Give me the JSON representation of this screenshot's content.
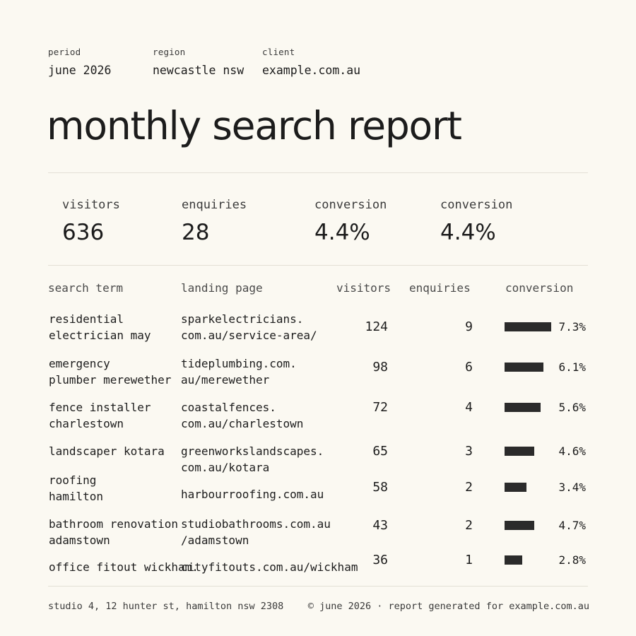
{
  "meta": {
    "period_label": "period",
    "period_value": "june 2026",
    "region_label": "region",
    "region_value": "newcastle nsw",
    "client_label": "client",
    "client_value": "example.com.au"
  },
  "title": "monthly search report",
  "kpis": [
    {
      "label": "visitors",
      "value": "636"
    },
    {
      "label": "enquiries",
      "value": "28"
    },
    {
      "label": "conversion",
      "value": "4.4%"
    },
    {
      "label": "conversion",
      "value": "4.4%"
    }
  ],
  "table": {
    "headers": [
      "search term",
      "landing page",
      "visitors",
      "enquiries",
      "conversion"
    ],
    "rows": [
      {
        "term": [
          "residential",
          "electrician may"
        ],
        "page": [
          "sparkelectricians.",
          "com.au/service-area/"
        ],
        "visitors": "124",
        "enquiries": "9",
        "conversion": "7.3%",
        "conversion_value": 7.3
      },
      {
        "term": [
          "emergency",
          "plumber merewether"
        ],
        "page": [
          "tideplumbing.com.",
          "au/merewether"
        ],
        "visitors": "98",
        "enquiries": "6",
        "conversion": "6.1%",
        "conversion_value": 6.1
      },
      {
        "term": [
          "fence installer",
          "charlestown"
        ],
        "page": [
          "coastalfences.",
          "com.au/charlestown"
        ],
        "visitors": "72",
        "enquiries": "4",
        "conversion": "5.6%",
        "conversion_value": 5.6
      },
      {
        "term": [
          "landscaper kotara"
        ],
        "page": [
          "greenworkslandscapes.",
          "com.au/kotara"
        ],
        "visitors": "65",
        "enquiries": "3",
        "conversion": "4.6%",
        "conversion_value": 4.6
      },
      {
        "term": [
          "roofing",
          "hamilton"
        ],
        "page": [
          "harbourroofing.com.au"
        ],
        "visitors": "58",
        "enquiries": "2",
        "conversion": "3.4%",
        "conversion_value": 3.4
      },
      {
        "term": [
          "bathroom renovation",
          "adamstown"
        ],
        "page": [
          "studiobathrooms.com.au",
          "/adamstown"
        ],
        "visitors": "43",
        "enquiries": "2",
        "conversion": "4.7%",
        "conversion_value": 4.7
      },
      {
        "term": [
          "office fitout wickham."
        ],
        "page": [
          "cityfitouts.com.au/wickham"
        ],
        "visitors": "36",
        "enquiries": "1",
        "conversion": "2.8%",
        "conversion_value": 2.8
      }
    ]
  },
  "footer": {
    "address": "studio 4, 12 hunter st, hamilton nsw 2308",
    "note": "© june 2026 · report generated for example.com.au"
  },
  "colors": {
    "background": "#fbf9f2",
    "text": "#1c1c1c",
    "bar": "#2b2b2b",
    "rule": "#e3e0d6"
  }
}
